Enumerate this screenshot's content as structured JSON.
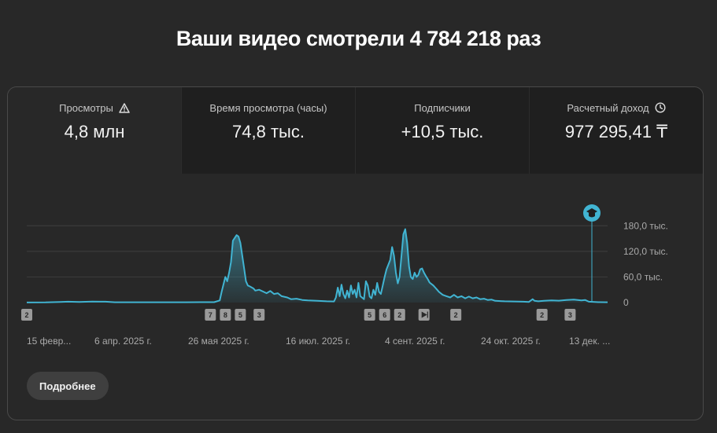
{
  "header": {
    "title": "Ваши видео смотрели 4 784 218 раз"
  },
  "metrics": [
    {
      "label": "Просмотры",
      "value": "4,8 млн",
      "icon": "warning-icon",
      "active": true
    },
    {
      "label": "Время просмотра (часы)",
      "value": "74,8 тыс.",
      "icon": "",
      "active": false
    },
    {
      "label": "Подписчики",
      "value": "+10,5 тыс.",
      "icon": "",
      "active": false
    },
    {
      "label": "Расчетный доход",
      "value": "977 295,41 ₸",
      "icon": "clock-icon",
      "active": false
    }
  ],
  "chart_data": {
    "type": "area",
    "metric": "Просмотры",
    "x_ticks": [
      "15 февр...",
      "6 апр. 2025 г.",
      "26 мая 2025 г.",
      "16 июл. 2025 г.",
      "4 сент. 2025 г.",
      "24 окт. 2025 г.",
      "13 дек. ..."
    ],
    "y_ticks": [
      "0",
      "60,0 тыс.",
      "120,0 тыс.",
      "180,0 тыс."
    ],
    "ylim": [
      0,
      210000
    ],
    "xlim": [
      0,
      310
    ],
    "grid": true,
    "color": "#41b4d2",
    "values": [
      [
        0,
        200
      ],
      [
        10,
        400
      ],
      [
        18,
        1500
      ],
      [
        22,
        2000
      ],
      [
        28,
        1200
      ],
      [
        35,
        2200
      ],
      [
        42,
        2000
      ],
      [
        47,
        800
      ],
      [
        55,
        700
      ],
      [
        70,
        700
      ],
      [
        85,
        800
      ],
      [
        100,
        900
      ],
      [
        103,
        5000
      ],
      [
        104,
        25000
      ],
      [
        106,
        60000
      ],
      [
        107,
        50000
      ],
      [
        108,
        70000
      ],
      [
        109,
        95000
      ],
      [
        110,
        145000
      ],
      [
        112,
        158000
      ],
      [
        113,
        155000
      ],
      [
        114,
        140000
      ],
      [
        115,
        110000
      ],
      [
        116,
        80000
      ],
      [
        117,
        50000
      ],
      [
        118,
        40000
      ],
      [
        119,
        38000
      ],
      [
        121,
        33000
      ],
      [
        122,
        28000
      ],
      [
        124,
        30000
      ],
      [
        126,
        26000
      ],
      [
        128,
        22000
      ],
      [
        130,
        27000
      ],
      [
        132,
        20000
      ],
      [
        134,
        22000
      ],
      [
        136,
        15000
      ],
      [
        139,
        12000
      ],
      [
        141,
        8000
      ],
      [
        144,
        9000
      ],
      [
        147,
        6000
      ],
      [
        150,
        5000
      ],
      [
        155,
        4000
      ],
      [
        160,
        3000
      ],
      [
        164,
        2500
      ],
      [
        165,
        12000
      ],
      [
        166,
        35000
      ],
      [
        167,
        15000
      ],
      [
        168,
        42000
      ],
      [
        169,
        20000
      ],
      [
        170,
        10000
      ],
      [
        171,
        28000
      ],
      [
        172,
        12000
      ],
      [
        173,
        40000
      ],
      [
        174,
        20000
      ],
      [
        175,
        30000
      ],
      [
        176,
        12000
      ],
      [
        177,
        46000
      ],
      [
        178,
        15000
      ],
      [
        180,
        8000
      ],
      [
        181,
        50000
      ],
      [
        182,
        40000
      ],
      [
        183,
        14000
      ],
      [
        184,
        10000
      ],
      [
        185,
        30000
      ],
      [
        186,
        18000
      ],
      [
        187,
        46000
      ],
      [
        188,
        25000
      ],
      [
        189,
        20000
      ],
      [
        190,
        40000
      ],
      [
        191,
        60000
      ],
      [
        192,
        78000
      ],
      [
        194,
        100000
      ],
      [
        195,
        130000
      ],
      [
        196,
        110000
      ],
      [
        197,
        70000
      ],
      [
        198,
        45000
      ],
      [
        199,
        60000
      ],
      [
        200,
        110000
      ],
      [
        201,
        160000
      ],
      [
        202,
        172000
      ],
      [
        203,
        140000
      ],
      [
        204,
        85000
      ],
      [
        205,
        60000
      ],
      [
        206,
        55000
      ],
      [
        207,
        70000
      ],
      [
        208,
        60000
      ],
      [
        209,
        65000
      ],
      [
        210,
        78000
      ],
      [
        211,
        80000
      ],
      [
        212,
        70000
      ],
      [
        213,
        62000
      ],
      [
        214,
        55000
      ],
      [
        215,
        47000
      ],
      [
        217,
        40000
      ],
      [
        218,
        35000
      ],
      [
        219,
        30000
      ],
      [
        220,
        25000
      ],
      [
        222,
        18000
      ],
      [
        224,
        15000
      ],
      [
        226,
        12000
      ],
      [
        228,
        18000
      ],
      [
        230,
        12000
      ],
      [
        232,
        15000
      ],
      [
        234,
        10000
      ],
      [
        236,
        14000
      ],
      [
        238,
        10000
      ],
      [
        240,
        12000
      ],
      [
        242,
        8000
      ],
      [
        244,
        9000
      ],
      [
        246,
        6000
      ],
      [
        248,
        7000
      ],
      [
        250,
        4000
      ],
      [
        255,
        3000
      ],
      [
        260,
        2500
      ],
      [
        265,
        2000
      ],
      [
        268,
        1500
      ],
      [
        270,
        8000
      ],
      [
        271,
        4000
      ],
      [
        273,
        3000
      ],
      [
        276,
        4000
      ],
      [
        280,
        5000
      ],
      [
        284,
        4500
      ],
      [
        288,
        6000
      ],
      [
        292,
        7000
      ],
      [
        296,
        5000
      ],
      [
        298,
        6000
      ],
      [
        300,
        2000
      ],
      [
        305,
        1000
      ],
      [
        310,
        800
      ]
    ],
    "events": [
      {
        "label": "2",
        "x": 0
      },
      {
        "label": "7",
        "x": 98
      },
      {
        "label": "8",
        "x": 106
      },
      {
        "label": "5",
        "x": 114
      },
      {
        "label": "3",
        "x": 124
      },
      {
        "label": "5",
        "x": 183
      },
      {
        "label": "6",
        "x": 191
      },
      {
        "label": "2",
        "x": 199
      },
      {
        "label": "▶",
        "x": 212
      },
      {
        "label": "2",
        "x": 229
      },
      {
        "label": "2",
        "x": 275
      },
      {
        "label": "3",
        "x": 290
      }
    ],
    "now_marker_icon": "graduation-cap-icon"
  },
  "more_button": {
    "label": "Подробнее"
  }
}
